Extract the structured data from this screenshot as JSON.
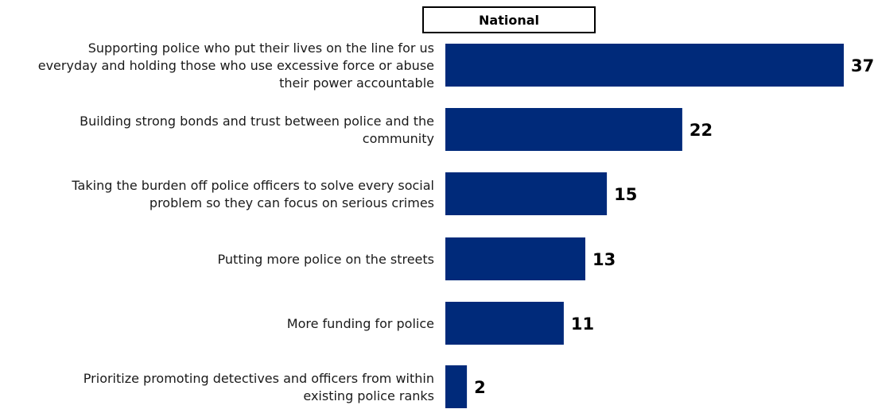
{
  "header": {
    "label": "National"
  },
  "colors": {
    "bar": "#002A7A",
    "text": "#1a1a1a",
    "value": "#000000"
  },
  "chart_data": {
    "type": "bar",
    "orientation": "horizontal",
    "categories": [
      "Supporting police who put their lives on the line for us everyday and holding those who use excessive force or abuse their power accountable",
      "Building strong bonds and trust between police and the community",
      "Taking the burden off police officers to solve every social problem so they can focus on serious crimes",
      "Putting more police on the streets",
      "More funding for police",
      "Prioritize promoting detectives and officers from within existing police ranks"
    ],
    "category_lines": [
      [
        "Supporting police who put their lives on the line for us",
        "everyday and holding those who use excessive force or abuse",
        "their power accountable"
      ],
      [
        "Building strong bonds and trust between police and the",
        "community"
      ],
      [
        "Taking the burden off police officers to solve every social",
        "problem so they can focus on serious crimes"
      ],
      [
        "Putting more police on the streets"
      ],
      [
        "More funding for police"
      ],
      [
        "Prioritize promoting detectives and officers from within",
        "existing police ranks"
      ]
    ],
    "values": [
      37,
      22,
      15,
      13,
      11,
      2
    ],
    "series": [
      {
        "name": "National",
        "values": [
          37,
          22,
          15,
          13,
          11,
          2
        ]
      }
    ],
    "xlim": [
      0,
      37
    ],
    "grid": false,
    "title": "",
    "xlabel": "",
    "ylabel": ""
  }
}
